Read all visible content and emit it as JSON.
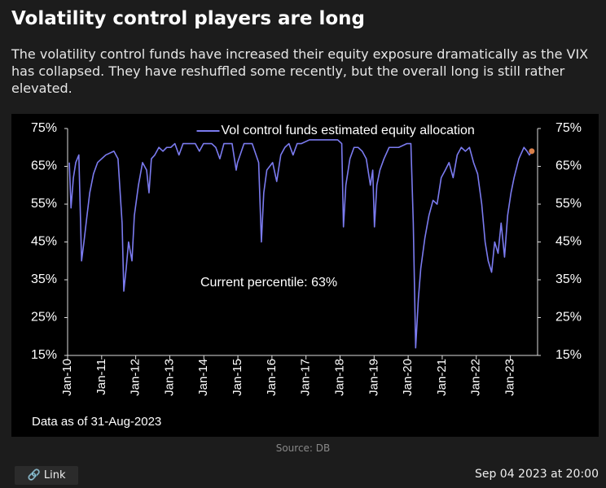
{
  "title": "Volatility control players are long",
  "subtitle": "The volatility control funds have increased their equity exposure dramatically as the VIX has collapsed. They have reshuffled some recently, but the overall long is still rather elevated.",
  "source": "Source: DB",
  "link_label": "Link",
  "timestamp": "Sep 04 2023 at 20:00",
  "chart_data": {
    "type": "line",
    "annotation": "Current percentile: 63%",
    "note": "Data as of 31-Aug-2023",
    "legend": "top",
    "grid": false,
    "marker_color": "#d9804a",
    "xlim": [
      2010,
      2023.8
    ],
    "xticks": [
      {
        "value": 2010,
        "label": "Jan-10"
      },
      {
        "value": 2011,
        "label": "Jan-11"
      },
      {
        "value": 2012,
        "label": "Jan-12"
      },
      {
        "value": 2013,
        "label": "Jan-13"
      },
      {
        "value": 2014,
        "label": "Jan-14"
      },
      {
        "value": 2015,
        "label": "Jan-15"
      },
      {
        "value": 2016,
        "label": "Jan-16"
      },
      {
        "value": 2017,
        "label": "Jan-17"
      },
      {
        "value": 2018,
        "label": "Jan-18"
      },
      {
        "value": 2019,
        "label": "Jan-19"
      },
      {
        "value": 2020,
        "label": "Jan-20"
      },
      {
        "value": 2021,
        "label": "Jan-21"
      },
      {
        "value": 2022,
        "label": "Jan-22"
      },
      {
        "value": 2023,
        "label": "Jan-23"
      }
    ],
    "ylim": [
      15,
      75
    ],
    "yticks": [
      {
        "value": 15,
        "label": "15%"
      },
      {
        "value": 25,
        "label": "25%"
      },
      {
        "value": 35,
        "label": "35%"
      },
      {
        "value": 45,
        "label": "45%"
      },
      {
        "value": 55,
        "label": "55%"
      },
      {
        "value": 65,
        "label": "65%"
      },
      {
        "value": 75,
        "label": "75%"
      }
    ],
    "y2lim": [
      15,
      75
    ],
    "y2ticks": [
      {
        "value": 15,
        "label": "15%"
      },
      {
        "value": 25,
        "label": "25%"
      },
      {
        "value": 35,
        "label": "35%"
      },
      {
        "value": 45,
        "label": "45%"
      },
      {
        "value": 55,
        "label": "55%"
      },
      {
        "value": 65,
        "label": "65%"
      },
      {
        "value": 75,
        "label": "75%"
      }
    ],
    "x": [
      2010.05,
      2010.1,
      2010.17,
      2010.24,
      2010.33,
      2010.41,
      2010.48,
      2010.57,
      2010.65,
      2010.76,
      2010.88,
      2011.0,
      2011.12,
      2011.36,
      2011.48,
      2011.6,
      2011.65,
      2011.72,
      2011.79,
      2011.89,
      2011.96,
      2012.08,
      2012.2,
      2012.32,
      2012.39,
      2012.46,
      2012.56,
      2012.68,
      2012.8,
      2012.91,
      2013.03,
      2013.15,
      2013.27,
      2013.39,
      2013.51,
      2013.75,
      2013.87,
      2013.99,
      2014.23,
      2014.35,
      2014.47,
      2014.59,
      2014.83,
      2014.95,
      2014.99,
      2015.18,
      2015.42,
      2015.61,
      2015.69,
      2015.76,
      2015.85,
      2016.02,
      2016.14,
      2016.26,
      2016.38,
      2016.5,
      2016.62,
      2016.74,
      2016.86,
      2017.1,
      2017.45,
      2017.93,
      2018.05,
      2018.1,
      2018.17,
      2018.29,
      2018.41,
      2018.53,
      2018.65,
      2018.77,
      2018.89,
      2018.96,
      2019.01,
      2019.08,
      2019.17,
      2019.29,
      2019.44,
      2019.72,
      2019.96,
      2020.08,
      2020.15,
      2020.22,
      2020.3,
      2020.37,
      2020.49,
      2020.61,
      2020.73,
      2020.85,
      2020.97,
      2021.09,
      2021.2,
      2021.32,
      2021.44,
      2021.56,
      2021.68,
      2021.8,
      2021.92,
      2022.04,
      2022.16,
      2022.26,
      2022.35,
      2022.45,
      2022.54,
      2022.64,
      2022.73,
      2022.83,
      2022.92,
      2023.02,
      2023.11,
      2023.25,
      2023.4,
      2023.49,
      2023.56,
      2023.63
    ],
    "series": [
      {
        "name": "Vol control funds estimated equity allocation",
        "color": "#7b7bf0",
        "values": [
          66,
          54,
          62,
          66,
          68,
          40,
          45,
          52,
          58,
          63,
          66,
          67,
          68,
          69,
          67,
          50,
          32,
          38,
          45,
          40,
          52,
          60,
          66,
          64,
          58,
          67,
          68,
          70,
          69,
          70,
          70,
          71,
          68,
          71,
          71,
          71,
          69,
          71,
          71,
          70,
          67,
          71,
          71,
          64,
          66,
          71,
          71,
          66,
          45,
          58,
          64,
          66,
          61,
          68,
          70,
          71,
          68,
          71,
          71,
          72,
          72,
          72,
          71,
          49,
          60,
          67,
          70,
          70,
          69,
          67,
          60,
          64,
          49,
          60,
          64,
          67,
          70,
          70,
          71,
          71,
          50,
          17,
          30,
          38,
          46,
          52,
          56,
          55,
          62,
          64,
          66,
          62,
          68,
          70,
          69,
          70,
          66,
          63,
          55,
          45,
          40,
          37,
          45,
          42,
          50,
          41,
          52,
          58,
          62,
          67,
          70,
          69,
          68,
          69
        ]
      }
    ]
  }
}
